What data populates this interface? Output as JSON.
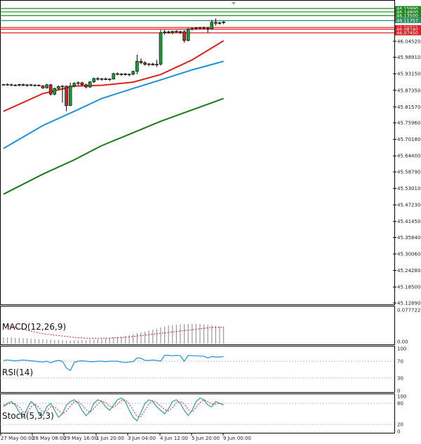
{
  "chart_data": [
    {
      "type": "candlestick",
      "panel": "price",
      "ylim": [
        45.1289,
        46.17
      ],
      "y_ticks": [
        "46.04520",
        "45.98910",
        "45.93150",
        "45.87350",
        "45.81570",
        "45.75960",
        "45.70180",
        "45.64400",
        "45.58790",
        "45.53010",
        "45.47230",
        "45.41450",
        "45.35840",
        "45.30060",
        "45.24280",
        "45.18500",
        "45.12890"
      ],
      "levels": [
        {
          "value": 46.1599,
          "label": "46.15990",
          "color": "#1f8a1f"
        },
        {
          "value": 46.148,
          "label": "46.14800",
          "color": "#1f8a1f"
        },
        {
          "value": 46.135,
          "label": "46.13500",
          "color": "#1f8a1f"
        },
        {
          "value": 46.1175,
          "label": "46.11757",
          "color": "#2a8f6a"
        },
        {
          "value": 46.0932,
          "label": "46.09320",
          "color": "#e02020"
        },
        {
          "value": 46.0874,
          "label": "46.08740",
          "color": "#e02020"
        },
        {
          "value": 46.0745,
          "label": "46.07450",
          "color": "#e02020"
        }
      ],
      "candles": [
        [
          45.893,
          45.896,
          45.89,
          45.894
        ],
        [
          45.894,
          45.898,
          45.89,
          45.893
        ],
        [
          45.893,
          45.897,
          45.889,
          45.892
        ],
        [
          45.892,
          45.895,
          45.888,
          45.891
        ],
        [
          45.891,
          45.896,
          45.887,
          45.894
        ],
        [
          45.894,
          45.897,
          45.889,
          45.89
        ],
        [
          45.89,
          45.895,
          45.886,
          45.893
        ],
        [
          45.893,
          45.896,
          45.888,
          45.891
        ],
        [
          45.891,
          45.895,
          45.887,
          45.892
        ],
        [
          45.892,
          45.894,
          45.888,
          45.889
        ],
        [
          45.889,
          45.892,
          45.878,
          45.882
        ],
        [
          45.882,
          45.896,
          45.88,
          45.893
        ],
        [
          45.893,
          45.896,
          45.855,
          45.86
        ],
        [
          45.86,
          45.883,
          45.856,
          45.88
        ],
        [
          45.88,
          45.89,
          45.875,
          45.887
        ],
        [
          45.887,
          45.892,
          45.83,
          45.888
        ],
        [
          45.888,
          45.89,
          45.8,
          45.82
        ],
        [
          45.82,
          45.9,
          45.818,
          45.889
        ],
        [
          45.889,
          45.902,
          45.884,
          45.898
        ],
        [
          45.898,
          45.905,
          45.892,
          45.9
        ],
        [
          45.9,
          45.903,
          45.89,
          45.893
        ],
        [
          45.893,
          45.897,
          45.88,
          45.885
        ],
        [
          45.885,
          45.905,
          45.882,
          45.903
        ],
        [
          45.903,
          45.918,
          45.899,
          45.915
        ],
        [
          45.915,
          45.919,
          45.908,
          45.912
        ],
        [
          45.912,
          45.917,
          45.907,
          45.914
        ],
        [
          45.914,
          45.918,
          45.909,
          45.911
        ],
        [
          45.911,
          45.915,
          45.906,
          45.913
        ],
        [
          45.913,
          45.935,
          45.911,
          45.932
        ],
        [
          45.932,
          45.936,
          45.926,
          45.929
        ],
        [
          45.929,
          45.934,
          45.924,
          45.931
        ],
        [
          45.931,
          45.934,
          45.926,
          45.928
        ],
        [
          45.928,
          45.932,
          45.923,
          45.93
        ],
        [
          45.93,
          45.942,
          45.926,
          45.94
        ],
        [
          45.94,
          45.998,
          45.93,
          45.975
        ],
        [
          45.975,
          45.985,
          45.965,
          45.97
        ],
        [
          45.97,
          45.975,
          45.96,
          45.964
        ],
        [
          45.964,
          45.969,
          45.958,
          45.966
        ],
        [
          45.966,
          45.97,
          45.96,
          45.962
        ],
        [
          45.962,
          45.98,
          45.955,
          45.965
        ],
        [
          45.965,
          46.085,
          45.96,
          46.075
        ],
        [
          46.075,
          46.085,
          46.068,
          46.078
        ],
        [
          46.078,
          46.083,
          46.072,
          46.076
        ],
        [
          46.076,
          46.082,
          46.07,
          46.08
        ],
        [
          46.08,
          46.084,
          46.074,
          46.077
        ],
        [
          46.077,
          46.082,
          46.071,
          46.079
        ],
        [
          46.079,
          46.084,
          46.04,
          46.048
        ],
        [
          46.048,
          46.092,
          46.045,
          46.088
        ],
        [
          46.088,
          46.093,
          46.083,
          46.09
        ],
        [
          46.09,
          46.095,
          46.085,
          46.092
        ],
        [
          46.092,
          46.096,
          46.087,
          46.093
        ],
        [
          46.093,
          46.097,
          46.088,
          46.091
        ],
        [
          46.091,
          46.096,
          46.075,
          46.089
        ],
        [
          46.089,
          46.12,
          46.085,
          46.112
        ],
        [
          46.112,
          46.125,
          46.1,
          46.108
        ],
        [
          46.108,
          46.114,
          46.103,
          46.11
        ],
        [
          46.11,
          46.116,
          46.105,
          46.113
        ]
      ],
      "moving_averages": [
        {
          "color": "#e02020",
          "points": [
            [
              0,
              45.8
            ],
            [
              10,
              45.862
            ],
            [
              18,
              45.888
            ],
            [
              25,
              45.891
            ],
            [
              33,
              45.902
            ],
            [
              40,
              45.929
            ],
            [
              48,
              45.98
            ],
            [
              56,
              46.047
            ]
          ]
        },
        {
          "color": "#1e90e0",
          "points": [
            [
              0,
              45.67
            ],
            [
              10,
              45.75
            ],
            [
              18,
              45.8
            ],
            [
              25,
              45.845
            ],
            [
              33,
              45.88
            ],
            [
              40,
              45.91
            ],
            [
              48,
              45.945
            ],
            [
              56,
              45.975
            ]
          ]
        },
        {
          "color": "#1a7a1a",
          "points": [
            [
              0,
              45.51
            ],
            [
              10,
              45.58
            ],
            [
              18,
              45.63
            ],
            [
              25,
              45.68
            ],
            [
              33,
              45.725
            ],
            [
              40,
              45.765
            ],
            [
              48,
              45.805
            ],
            [
              56,
              45.845
            ]
          ]
        }
      ]
    },
    {
      "type": "bar",
      "panel": "macd",
      "label": "MACD(12,26,9)",
      "y_ticks": [
        "0.077722",
        "0.00"
      ],
      "ylim": [
        0,
        0.0777
      ],
      "values": [
        0.014,
        0.014,
        0.014,
        0.013,
        0.013,
        0.012,
        0.012,
        0.011,
        0.011,
        0.01,
        0.01,
        0.009,
        0.009,
        0.008,
        0.008,
        0.008,
        0.007,
        0.007,
        0.007,
        0.007,
        0.008,
        0.008,
        0.009,
        0.009,
        0.01,
        0.011,
        0.012,
        0.013,
        0.014,
        0.015,
        0.016,
        0.017,
        0.019,
        0.021,
        0.023,
        0.025,
        0.027,
        0.029,
        0.031,
        0.033,
        0.036,
        0.038,
        0.04,
        0.041,
        0.042,
        0.043,
        0.043,
        0.044,
        0.044,
        0.044,
        0.044,
        0.043,
        0.042,
        0.041,
        0.04,
        0.039,
        0.038
      ],
      "signal": [
        0.042,
        0.04,
        0.038,
        0.036,
        0.034,
        0.032,
        0.03,
        0.028,
        0.026,
        0.024,
        0.022,
        0.021,
        0.02,
        0.019,
        0.018,
        0.017,
        0.016,
        0.015,
        0.014,
        0.013,
        0.013,
        0.012,
        0.012,
        0.012,
        0.012,
        0.012,
        0.012,
        0.012,
        0.013,
        0.013,
        0.014,
        0.014,
        0.015,
        0.016,
        0.017,
        0.018,
        0.019,
        0.02,
        0.021,
        0.022,
        0.023,
        0.024,
        0.025,
        0.026,
        0.027,
        0.028,
        0.029,
        0.03,
        0.031,
        0.032,
        0.033,
        0.034,
        0.035,
        0.036,
        0.036,
        0.036,
        0.036
      ]
    },
    {
      "type": "line",
      "panel": "rsi",
      "label": "RSI(14)",
      "y_ticks": [
        "100",
        "70",
        "30",
        "0"
      ],
      "ylim": [
        0,
        100
      ],
      "values": [
        72,
        73,
        72,
        71,
        72,
        73,
        72,
        71,
        70,
        69,
        68,
        70,
        66,
        70,
        72,
        70,
        54,
        48,
        67,
        70,
        71,
        70,
        69,
        69,
        70,
        70,
        69,
        70,
        70,
        70,
        68,
        67,
        68,
        69,
        78,
        77,
        72,
        72,
        73,
        72,
        70,
        84,
        84,
        83,
        84,
        83,
        70,
        84,
        83,
        83,
        82,
        82,
        78,
        81,
        80,
        80,
        81
      ]
    },
    {
      "type": "line",
      "panel": "stoch",
      "label": "Stoch(5,3,3)",
      "y_ticks": [
        "100",
        "80",
        "20",
        "0"
      ],
      "ylim": [
        0,
        100
      ],
      "k": [
        70,
        80,
        85,
        75,
        55,
        40,
        65,
        85,
        75,
        50,
        45,
        70,
        80,
        60,
        40,
        50,
        75,
        85,
        90,
        80,
        60,
        45,
        55,
        80,
        90,
        85,
        70,
        60,
        75,
        90,
        95,
        85,
        60,
        40,
        30,
        55,
        80,
        90,
        85,
        70,
        60,
        50,
        65,
        85,
        90,
        80,
        60,
        45,
        60,
        85,
        95,
        90,
        75,
        70,
        85,
        80,
        75
      ],
      "d": [
        75,
        78,
        80,
        78,
        70,
        55,
        55,
        70,
        78,
        68,
        55,
        58,
        70,
        70,
        60,
        50,
        58,
        72,
        85,
        85,
        75,
        62,
        55,
        65,
        78,
        87,
        82,
        72,
        68,
        78,
        88,
        90,
        78,
        60,
        42,
        42,
        60,
        78,
        88,
        82,
        72,
        62,
        58,
        68,
        82,
        85,
        78,
        62,
        55,
        68,
        82,
        90,
        85,
        78,
        78,
        80,
        78
      ]
    }
  ],
  "x_labels": [
    "27 May 00:00",
    "28 May 08:00",
    "29 May 16:00",
    "1 Jun 20:00",
    "3 Jun 04:00",
    "4 Jun 12:00",
    "5 Jun 20:00",
    "9 Jun 00:00"
  ]
}
